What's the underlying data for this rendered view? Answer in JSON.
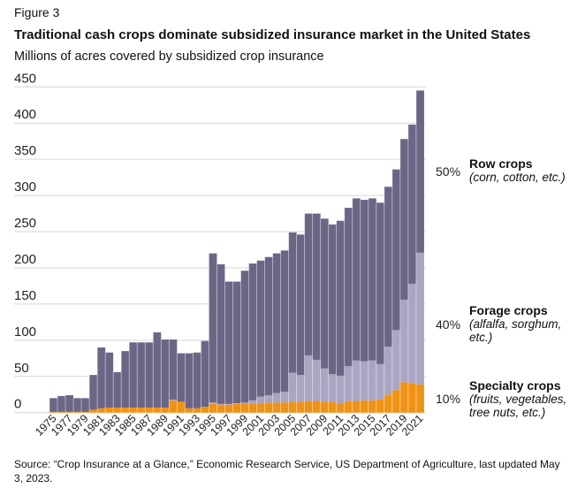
{
  "figure_label": "Figure 3",
  "title": "Traditional cash crops dominate subsidized insurance market in the United States",
  "subtitle": "Millions of acres covered by subsidized crop insurance",
  "source": "Source: “Crop Insurance at a Glance,” Economic Research Service, US Department of Agriculture, last updated May 3, 2023.",
  "annotations": [
    {
      "pct": "50%",
      "label": "Row crops",
      "detail": "(corn, cotton, etc.)"
    },
    {
      "pct": "40%",
      "label": "Forage crops",
      "detail": "(alfalfa, sorghum, etc.)"
    },
    {
      "pct": "10%",
      "label": "Specialty crops",
      "detail": "(fruits, vegetables, tree nuts, etc.)"
    }
  ],
  "chart_data": {
    "type": "bar",
    "stacked": true,
    "ylim": [
      0,
      450
    ],
    "yticks": [
      0,
      50,
      100,
      150,
      200,
      250,
      300,
      350,
      400,
      450
    ],
    "grid": true,
    "x": [
      1975,
      1976,
      1977,
      1978,
      1979,
      1980,
      1981,
      1982,
      1983,
      1984,
      1985,
      1986,
      1987,
      1988,
      1989,
      1990,
      1991,
      1992,
      1993,
      1994,
      1995,
      1996,
      1997,
      1998,
      1999,
      2000,
      2001,
      2002,
      2003,
      2004,
      2005,
      2006,
      2007,
      2008,
      2009,
      2010,
      2011,
      2012,
      2013,
      2014,
      2015,
      2016,
      2017,
      2018,
      2019,
      2020,
      2021
    ],
    "xtick_labels": [
      "1975",
      "1977",
      "1979",
      "1981",
      "1983",
      "1985",
      "1987",
      "1989",
      "1991",
      "1993",
      "1995",
      "1997",
      "1999",
      "2001",
      "2003",
      "2005",
      "2007",
      "2009",
      "2011",
      "2013",
      "2015",
      "2017",
      "2019",
      "2021"
    ],
    "series": [
      {
        "name": "Specialty crops",
        "color": "#ef9315",
        "values": [
          1,
          1,
          1,
          1,
          1,
          4,
          6,
          7,
          7,
          7,
          7,
          7,
          7,
          7,
          7,
          17,
          15,
          6,
          6,
          8,
          12,
          11,
          11,
          12,
          13,
          12,
          13,
          14,
          14,
          14,
          15,
          15,
          16,
          16,
          15,
          15,
          13,
          16,
          16,
          17,
          17,
          18,
          25,
          31,
          42,
          41,
          39
        ]
      },
      {
        "name": "Forage crops",
        "color": "#aaa5c3",
        "values": [
          0,
          0,
          0,
          0,
          0,
          0,
          0,
          0,
          0,
          0,
          0,
          0,
          0,
          0,
          0,
          1,
          0,
          0,
          0,
          0,
          2,
          1,
          1,
          1,
          1,
          5,
          9,
          10,
          13,
          15,
          40,
          37,
          63,
          57,
          46,
          38,
          38,
          48,
          56,
          54,
          55,
          49,
          66,
          83,
          114,
          137,
          182
        ]
      },
      {
        "name": "Row crops",
        "color": "#6c6686",
        "values": [
          19,
          22,
          23,
          19,
          19,
          48,
          84,
          76,
          49,
          78,
          90,
          90,
          90,
          104,
          94,
          83,
          67,
          76,
          77,
          91,
          206,
          193,
          169,
          168,
          182,
          189,
          188,
          191,
          193,
          195,
          194,
          194,
          196,
          202,
          207,
          207,
          214,
          219,
          224,
          223,
          224,
          223,
          221,
          222,
          222,
          220,
          224
        ]
      }
    ]
  }
}
